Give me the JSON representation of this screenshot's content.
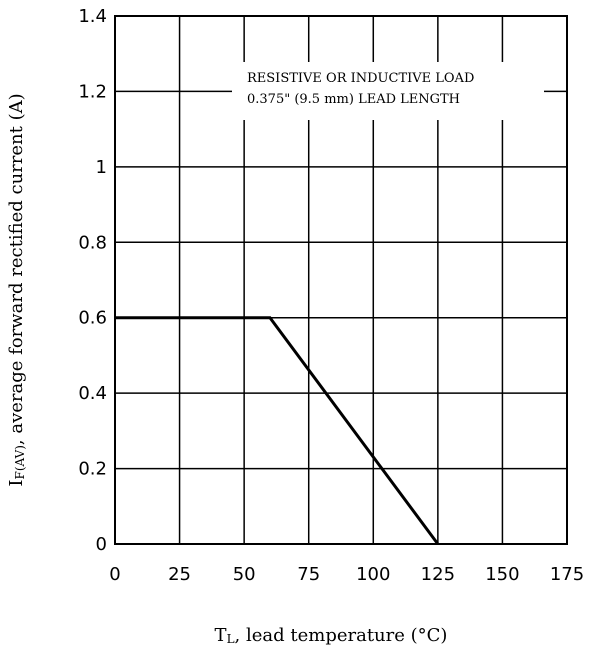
{
  "chart_data": {
    "type": "line",
    "title": "",
    "xlabel": "T",
    "xlabel_sub": "L",
    "xlabel_rest": ",  lead temperature (°C)",
    "ylabel": "I",
    "ylabel_sub": "F(AV)",
    "ylabel_rest": ", average forward rectified current (A)",
    "xlim": [
      0,
      175
    ],
    "ylim": [
      0,
      1.4
    ],
    "x_ticks": [
      0,
      25,
      50,
      75,
      100,
      125,
      150,
      175
    ],
    "x_tick_labels": [
      "0",
      "25",
      "50",
      "75",
      "100",
      "125",
      "150",
      "175"
    ],
    "y_ticks": [
      0,
      0.2,
      0.4,
      0.6,
      0.8,
      1,
      1.2,
      1.4
    ],
    "y_tick_labels": [
      "0",
      "0.2",
      "0.4",
      "0.6",
      "0.8",
      "1",
      "1.2",
      "1.4"
    ],
    "grid": true,
    "series": [
      {
        "x": [
          0,
          60,
          125
        ],
        "y": [
          0.6,
          0.6,
          0
        ]
      }
    ],
    "annotations": [
      "RESISTIVE OR INDUCTIVE LOAD",
      "0.375\" (9.5 mm) LEAD LENGTH"
    ]
  }
}
